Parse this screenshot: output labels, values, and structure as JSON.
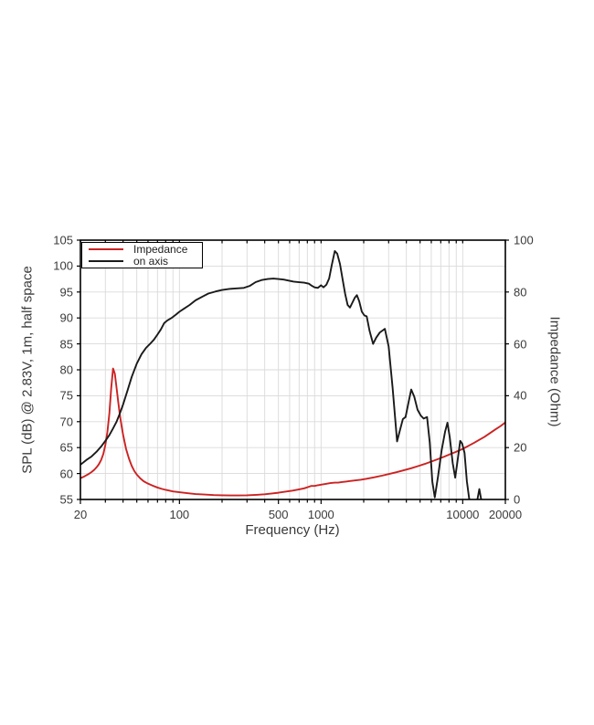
{
  "figure": {
    "background": "#ffffff",
    "frame_color": "#000000",
    "grid_color": "#dadada",
    "text_color": "#3a3a3a"
  },
  "chart_data": {
    "type": "line",
    "x_scale": "log",
    "grid": true,
    "legend_position": "upper left",
    "xlabel": "Frequency (Hz)",
    "ylabel_left": "SPL (dB) @ 2.83V, 1m, half space",
    "ylabel_right": "Impedance (Ohm)",
    "xlim": [
      20,
      20000
    ],
    "ylim_left": [
      55,
      105
    ],
    "ylim_right": [
      0,
      100
    ],
    "x_ticks_labeled": [
      {
        "value": 20,
        "label": "20"
      },
      {
        "value": 100,
        "label": "100"
      },
      {
        "value": 500,
        "label": "500"
      },
      {
        "value": 1000,
        "label": "1000"
      },
      {
        "value": 10000,
        "label": "10000"
      },
      {
        "value": 20000,
        "label": "20000"
      }
    ],
    "y_ticks_left": [
      55,
      60,
      65,
      70,
      75,
      80,
      85,
      90,
      95,
      100,
      105
    ],
    "y_ticks_right": [
      0,
      20,
      40,
      60,
      80,
      100
    ],
    "legend": [
      {
        "label": "Impedance",
        "color": "#cc2222"
      },
      {
        "label": "on axis",
        "color": "#1a1a1a"
      }
    ],
    "series": [
      {
        "name": "Impedance",
        "axis": "right",
        "color": "#cc2222",
        "points": [
          [
            20,
            8.2
          ],
          [
            21,
            8.7
          ],
          [
            22,
            9.3
          ],
          [
            23,
            9.9
          ],
          [
            24,
            10.6
          ],
          [
            25,
            11.4
          ],
          [
            26,
            12.4
          ],
          [
            27,
            13.6
          ],
          [
            28,
            15.2
          ],
          [
            29,
            17.5
          ],
          [
            30,
            21
          ],
          [
            31,
            26
          ],
          [
            32,
            33
          ],
          [
            33,
            43
          ],
          [
            34,
            50.5
          ],
          [
            35,
            48.5
          ],
          [
            36,
            43
          ],
          [
            37,
            37.5
          ],
          [
            38,
            32.5
          ],
          [
            39,
            28.5
          ],
          [
            40,
            25
          ],
          [
            42,
            19.5
          ],
          [
            44,
            15.8
          ],
          [
            46,
            13
          ],
          [
            48,
            11
          ],
          [
            50,
            9.6
          ],
          [
            53,
            8.1
          ],
          [
            56,
            7.0
          ],
          [
            60,
            6.1
          ],
          [
            65,
            5.3
          ],
          [
            70,
            4.6
          ],
          [
            75,
            4.1
          ],
          [
            80,
            3.7
          ],
          [
            90,
            3.1
          ],
          [
            100,
            2.8
          ],
          [
            115,
            2.4
          ],
          [
            130,
            2.1
          ],
          [
            150,
            1.9
          ],
          [
            175,
            1.7
          ],
          [
            200,
            1.6
          ],
          [
            230,
            1.55
          ],
          [
            260,
            1.55
          ],
          [
            300,
            1.6
          ],
          [
            350,
            1.8
          ],
          [
            400,
            2.0
          ],
          [
            450,
            2.3
          ],
          [
            500,
            2.6
          ],
          [
            560,
            3.0
          ],
          [
            630,
            3.4
          ],
          [
            700,
            3.9
          ],
          [
            760,
            4.3
          ],
          [
            810,
            4.8
          ],
          [
            850,
            5.2
          ],
          [
            900,
            5.2
          ],
          [
            950,
            5.5
          ],
          [
            1000,
            5.7
          ],
          [
            1080,
            6.0
          ],
          [
            1160,
            6.3
          ],
          [
            1250,
            6.5
          ],
          [
            1320,
            6.5
          ],
          [
            1400,
            6.7
          ],
          [
            1500,
            6.9
          ],
          [
            1700,
            7.3
          ],
          [
            1900,
            7.6
          ],
          [
            2100,
            8.0
          ],
          [
            2400,
            8.6
          ],
          [
            2700,
            9.2
          ],
          [
            3000,
            9.8
          ],
          [
            3400,
            10.5
          ],
          [
            3800,
            11.2
          ],
          [
            4300,
            12.0
          ],
          [
            4800,
            12.8
          ],
          [
            5400,
            13.7
          ],
          [
            6000,
            14.6
          ],
          [
            6700,
            15.6
          ],
          [
            7400,
            16.5
          ],
          [
            8200,
            17.5
          ],
          [
            9000,
            18.4
          ],
          [
            10000,
            19.5
          ],
          [
            11000,
            20.7
          ],
          [
            12000,
            21.8
          ],
          [
            13000,
            22.9
          ],
          [
            14200,
            24.1
          ],
          [
            15500,
            25.5
          ],
          [
            17000,
            27.0
          ],
          [
            18500,
            28.3
          ],
          [
            20000,
            29.7
          ]
        ]
      },
      {
        "name": "on axis",
        "axis": "left",
        "color": "#1a1a1a",
        "points": [
          [
            20,
            61.7
          ],
          [
            22,
            62.6
          ],
          [
            24,
            63.3
          ],
          [
            26,
            64.2
          ],
          [
            28,
            65.2
          ],
          [
            30,
            66.3
          ],
          [
            32,
            67.4
          ],
          [
            34,
            68.7
          ],
          [
            36,
            70.0
          ],
          [
            38,
            71.6
          ],
          [
            40,
            73.3
          ],
          [
            43,
            76.0
          ],
          [
            46,
            78.6
          ],
          [
            50,
            81.2
          ],
          [
            54,
            83.0
          ],
          [
            58,
            84.2
          ],
          [
            62,
            85.0
          ],
          [
            66,
            85.8
          ],
          [
            70,
            86.8
          ],
          [
            74,
            87.8
          ],
          [
            78,
            89.0
          ],
          [
            82,
            89.5
          ],
          [
            88,
            90.0
          ],
          [
            95,
            90.7
          ],
          [
            100,
            91.2
          ],
          [
            108,
            91.8
          ],
          [
            118,
            92.5
          ],
          [
            130,
            93.4
          ],
          [
            145,
            94.1
          ],
          [
            160,
            94.7
          ],
          [
            180,
            95.1
          ],
          [
            200,
            95.4
          ],
          [
            225,
            95.6
          ],
          [
            255,
            95.7
          ],
          [
            285,
            95.8
          ],
          [
            315,
            96.2
          ],
          [
            345,
            96.9
          ],
          [
            380,
            97.3
          ],
          [
            420,
            97.5
          ],
          [
            460,
            97.6
          ],
          [
            500,
            97.5
          ],
          [
            545,
            97.4
          ],
          [
            590,
            97.2
          ],
          [
            640,
            97.0
          ],
          [
            700,
            96.9
          ],
          [
            760,
            96.8
          ],
          [
            820,
            96.6
          ],
          [
            860,
            96.2
          ],
          [
            900,
            95.9
          ],
          [
            950,
            95.8
          ],
          [
            1000,
            96.3
          ],
          [
            1040,
            95.9
          ],
          [
            1090,
            96.4
          ],
          [
            1140,
            97.6
          ],
          [
            1190,
            100.2
          ],
          [
            1250,
            102.9
          ],
          [
            1300,
            102.4
          ],
          [
            1360,
            100.4
          ],
          [
            1420,
            97.4
          ],
          [
            1480,
            94.6
          ],
          [
            1540,
            92.5
          ],
          [
            1600,
            92.0
          ],
          [
            1660,
            92.9
          ],
          [
            1730,
            93.9
          ],
          [
            1790,
            94.4
          ],
          [
            1860,
            93.2
          ],
          [
            1940,
            91.2
          ],
          [
            2020,
            90.5
          ],
          [
            2100,
            90.3
          ],
          [
            2200,
            87.5
          ],
          [
            2330,
            85.0
          ],
          [
            2450,
            86.2
          ],
          [
            2600,
            87.2
          ],
          [
            2820,
            87.9
          ],
          [
            3000,
            84.5
          ],
          [
            3200,
            76.5
          ],
          [
            3440,
            66.2
          ],
          [
            3600,
            68.3
          ],
          [
            3780,
            70.5
          ],
          [
            3950,
            70.9
          ],
          [
            4150,
            73.8
          ],
          [
            4330,
            76.2
          ],
          [
            4550,
            74.8
          ],
          [
            4800,
            72.3
          ],
          [
            5050,
            71.2
          ],
          [
            5300,
            70.6
          ],
          [
            5600,
            70.9
          ],
          [
            5850,
            66.0
          ],
          [
            6100,
            58.5
          ],
          [
            6350,
            55.4
          ],
          [
            6700,
            59.5
          ],
          [
            7100,
            64.5
          ],
          [
            7500,
            68.0
          ],
          [
            7800,
            69.8
          ],
          [
            8100,
            67.0
          ],
          [
            8500,
            62.0
          ],
          [
            8850,
            59.2
          ],
          [
            9200,
            62.5
          ],
          [
            9600,
            66.3
          ],
          [
            9900,
            65.8
          ],
          [
            10300,
            64.0
          ],
          [
            10700,
            58.5
          ],
          [
            11100,
            55.2
          ],
          [
            11400,
            53.5
          ],
          [
            12000,
            53.0
          ],
          [
            12600,
            54.5
          ],
          [
            13100,
            57.0
          ],
          [
            13500,
            55.0
          ],
          [
            13900,
            53.0
          ]
        ]
      }
    ]
  }
}
